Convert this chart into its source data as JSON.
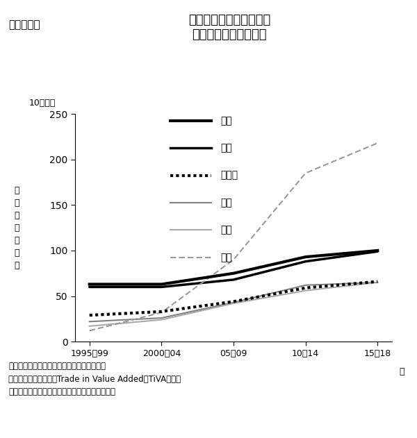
{
  "title_label": "〔図表２〕",
  "title_main_line1": "電気・電子・光学機器の",
  "title_main_line2": "付加価値ベース輸出額",
  "ylabel_top": "10億ドル",
  "ylabel_rotated": "付\n加\n価\n値\n輸\n出\n額",
  "xlabel_suffix": "年",
  "x_labels": [
    "1995〜99",
    "2000〜04",
    "05〜09",
    "10〜14",
    "15〜18"
  ],
  "x_values": [
    0,
    1,
    2,
    3,
    4
  ],
  "ylim": [
    0,
    250
  ],
  "yticks": [
    0,
    50,
    100,
    150,
    200,
    250
  ],
  "series": [
    {
      "name": "日本",
      "color": "#000000",
      "linewidth": 2.5,
      "linestyle": "solid",
      "values": [
        63,
        63,
        75,
        93,
        100
      ]
    },
    {
      "name": "米国",
      "color": "#000000",
      "linewidth": 2.5,
      "linestyle": "solid",
      "values": [
        60,
        60,
        68,
        88,
        99
      ],
      "extra_style": "outer_white"
    },
    {
      "name": "ドイツ",
      "color": "#000000",
      "linewidth": 2.0,
      "linestyle": "dotted",
      "values": [
        29,
        33,
        44,
        59,
        66
      ]
    },
    {
      "name": "韓国",
      "color": "#808080",
      "linewidth": 1.5,
      "linestyle": "solid",
      "values": [
        22,
        26,
        43,
        62,
        65
      ]
    },
    {
      "name": "台湾",
      "color": "#aaaaaa",
      "linewidth": 1.5,
      "linestyle": "solid",
      "values": [
        17,
        24,
        42,
        56,
        65
      ]
    },
    {
      "name": "中国",
      "color": "#999999",
      "linewidth": 1.5,
      "linestyle": "dashed",
      "values": [
        12,
        32,
        90,
        185,
        218
      ]
    }
  ],
  "note_line1": "（注）　各国の対世界付加価値ベース輸出。",
  "note_line2": "（出所）　ＯＥＣＤ「Trade in Value Added（TiVA）」か",
  "note_line3": "　　　らみずほリサーチ＆テクノロジーズ作成。",
  "background_color": "#ffffff",
  "font_color": "#000000"
}
